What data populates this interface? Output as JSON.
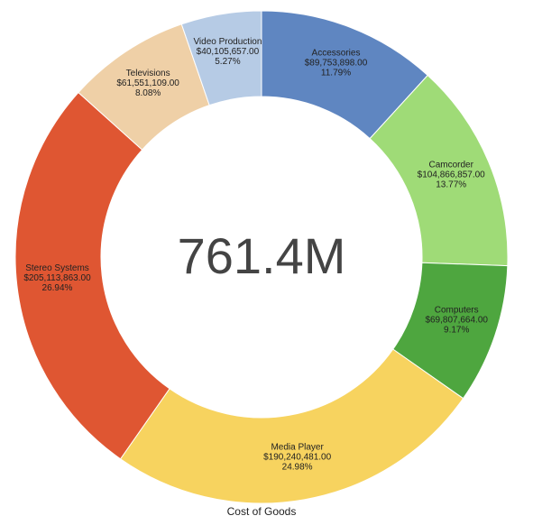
{
  "chart_data": {
    "type": "pie",
    "variant": "donut",
    "title": "Cost of Goods",
    "center_label": "761.4M",
    "start_angle_deg": 0,
    "direction": "clockwise",
    "slices": [
      {
        "name": "Accessories",
        "value": 89753898.0,
        "value_label": "$89,753,898.00",
        "percent_label": "11.79%",
        "color": "#5f86c1"
      },
      {
        "name": "Camcorder",
        "value": 104866857.0,
        "value_label": "$104,866,857.00",
        "percent_label": "13.77%",
        "color": "#9fdb77"
      },
      {
        "name": "Computers",
        "value": 69807664.0,
        "value_label": "$69,807,664.00",
        "percent_label": "9.17%",
        "color": "#4ea63f"
      },
      {
        "name": "Media Player",
        "value": 190240481.0,
        "value_label": "$190,240,481.00",
        "percent_label": "24.98%",
        "color": "#f7d35f"
      },
      {
        "name": "Stereo Systems",
        "value": 205113863.0,
        "value_label": "$205,113,863.00",
        "percent_label": "26.94%",
        "color": "#df5632"
      },
      {
        "name": "Televisions",
        "value": 61551109.0,
        "value_label": "$61,551,109.00",
        "percent_label": "8.08%",
        "color": "#efd0a7"
      },
      {
        "name": "Video Production",
        "value": 40105657.0,
        "value_label": "$40,105,657.00",
        "percent_label": "5.27%",
        "color": "#b6cbe5"
      }
    ]
  }
}
